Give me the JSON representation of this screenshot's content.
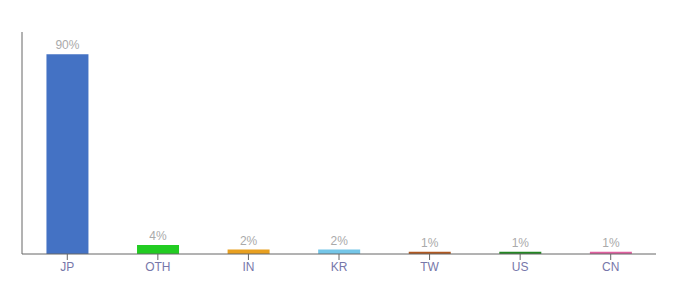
{
  "chart_data": {
    "type": "bar",
    "categories": [
      "JP",
      "OTH",
      "IN",
      "KR",
      "TW",
      "US",
      "CN"
    ],
    "values": [
      90,
      4,
      2,
      2,
      1,
      1,
      1
    ],
    "value_labels": [
      "90%",
      "4%",
      "2%",
      "2%",
      "1%",
      "1%",
      "1%"
    ],
    "colors": [
      "#4472c4",
      "#22cc22",
      "#e8a020",
      "#74c6e8",
      "#b05820",
      "#228822",
      "#e060a0"
    ],
    "ylim": [
      0,
      100
    ],
    "data_labels": true,
    "tick_labels": "x",
    "grid": false
  }
}
